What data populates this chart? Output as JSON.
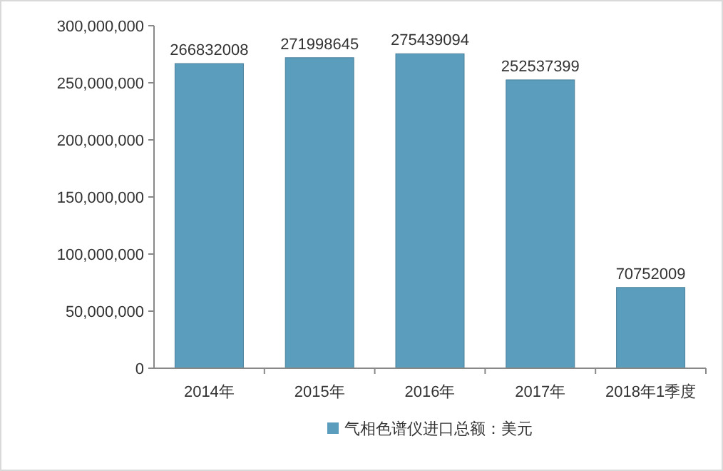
{
  "chart_data": {
    "type": "bar",
    "categories": [
      "2014年",
      "2015年",
      "2016年",
      "2017年",
      "2018年1季度"
    ],
    "series": [
      {
        "name": "气相色谱仪进口总额：美元",
        "color": "#5b9dbd",
        "values": [
          266832008,
          271998645,
          275439094,
          252537399,
          70752009
        ]
      }
    ],
    "ylim": [
      0,
      300000000
    ],
    "yticks": [
      {
        "value": 0,
        "label": "0"
      },
      {
        "value": 50000000,
        "label": "50,000,000"
      },
      {
        "value": 100000000,
        "label": "100,000,000"
      },
      {
        "value": 150000000,
        "label": "150,000,000"
      },
      {
        "value": 200000000,
        "label": "200,000,000"
      },
      {
        "value": 250000000,
        "label": "250,000,000"
      },
      {
        "value": 300000000,
        "label": "300,000,000"
      }
    ],
    "data_labels": true,
    "legend": "bottom",
    "grid": false
  }
}
